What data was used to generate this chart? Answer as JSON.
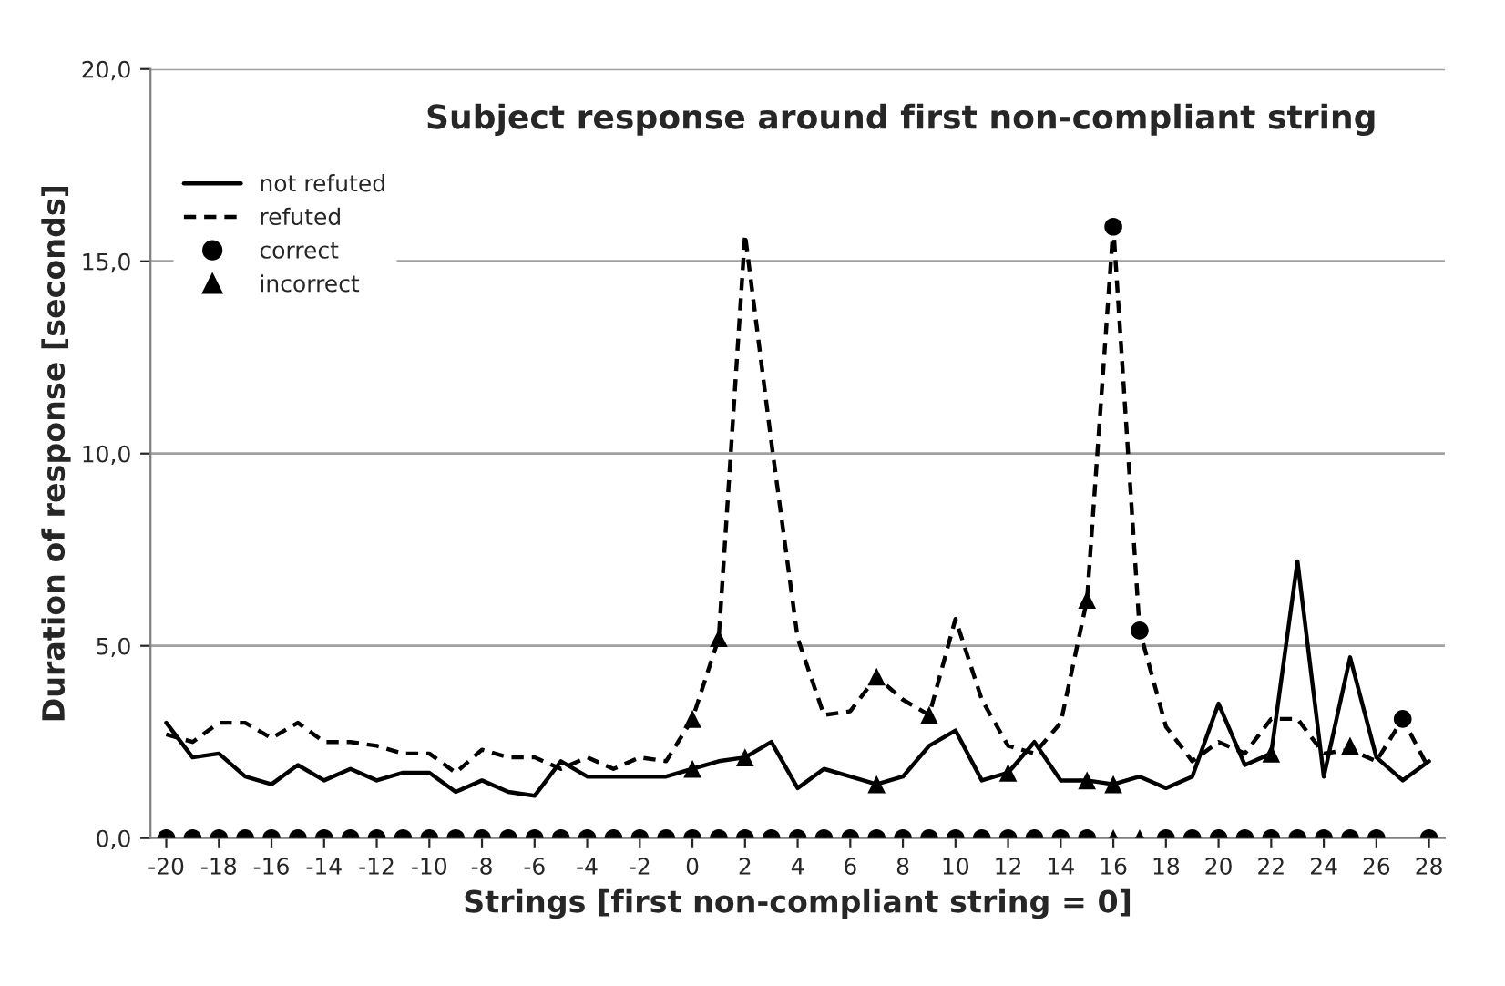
{
  "chart_data": {
    "type": "line",
    "title": "Subject response around first non-compliant string",
    "xlabel": "Strings [first non-compliant string = 0]",
    "ylabel": "Duration of response [seconds]",
    "x": [
      -20,
      -19,
      -18,
      -17,
      -16,
      -15,
      -14,
      -13,
      -12,
      -11,
      -10,
      -9,
      -8,
      -7,
      -6,
      -5,
      -4,
      -3,
      -2,
      -1,
      0,
      1,
      2,
      3,
      4,
      5,
      6,
      7,
      8,
      9,
      10,
      11,
      12,
      13,
      14,
      15,
      16,
      17,
      18,
      19,
      20,
      21,
      22,
      23,
      24,
      25,
      26,
      27,
      28
    ],
    "series": [
      {
        "name": "not refuted",
        "color": "#000000",
        "line_style": "solid",
        "marker": "none",
        "values": [
          3.0,
          2.1,
          2.2,
          1.6,
          1.4,
          1.9,
          1.5,
          1.8,
          1.5,
          1.7,
          1.7,
          1.2,
          1.5,
          1.2,
          1.1,
          2.0,
          1.6,
          1.6,
          1.6,
          1.6,
          1.8,
          2.0,
          2.1,
          2.5,
          1.3,
          1.8,
          1.6,
          1.4,
          1.6,
          2.4,
          2.8,
          1.5,
          1.7,
          2.5,
          1.5,
          1.5,
          1.4,
          1.6,
          1.3,
          1.6,
          3.5,
          1.9,
          2.2,
          7.2,
          1.6,
          4.7,
          2.1,
          1.5,
          2.0
        ]
      },
      {
        "name": "refuted",
        "color": "#000000",
        "line_style": "dashed",
        "marker": "none",
        "values": [
          2.7,
          2.5,
          3.0,
          3.0,
          2.6,
          3.0,
          2.5,
          2.5,
          2.4,
          2.2,
          2.2,
          1.7,
          2.3,
          2.1,
          2.1,
          1.8,
          2.1,
          1.8,
          2.1,
          2.0,
          3.1,
          5.2,
          15.7,
          10.3,
          5.2,
          3.2,
          3.3,
          4.2,
          3.6,
          3.2,
          5.7,
          3.6,
          2.4,
          2.2,
          3.0,
          6.2,
          15.9,
          5.4,
          2.9,
          2.0,
          2.5,
          2.2,
          3.1,
          3.1,
          2.2,
          2.3,
          2.0,
          3.1,
          1.8
        ]
      },
      {
        "name": "correct",
        "type": "scatter",
        "color": "#000000",
        "marker": "circle",
        "values": [
          0,
          0,
          0,
          0,
          0,
          0,
          0,
          0,
          0,
          0,
          0,
          0,
          0,
          0,
          0,
          0,
          0,
          0,
          0,
          0,
          0,
          0,
          0,
          0,
          0,
          0,
          0,
          0,
          0,
          0,
          0,
          0,
          0,
          0,
          0,
          0,
          15.9,
          5.4,
          0,
          0,
          0,
          0,
          0,
          0,
          0,
          0,
          0,
          3.1,
          0
        ]
      },
      {
        "name": "incorrect",
        "type": "scatter",
        "color": "#000000",
        "marker": "triangle",
        "x": [
          0,
          0,
          1,
          2,
          7,
          7,
          9,
          12,
          15,
          15,
          16,
          22,
          25,
          16,
          17
        ],
        "values": [
          3.1,
          1.8,
          5.2,
          2.1,
          4.2,
          1.4,
          3.2,
          1.7,
          6.2,
          1.5,
          1.4,
          2.2,
          2.4,
          0,
          0
        ]
      }
    ],
    "xlim": [
      -20.6,
      28.6
    ],
    "xticks": [
      -20,
      -18,
      -16,
      -14,
      -12,
      -10,
      -8,
      -6,
      -4,
      -2,
      0,
      2,
      4,
      6,
      8,
      10,
      12,
      14,
      16,
      18,
      20,
      22,
      24,
      26,
      28
    ],
    "ylim": [
      0,
      20
    ],
    "yticks": [
      {
        "value": 0,
        "label": "0,0"
      },
      {
        "value": 5,
        "label": "5,0"
      },
      {
        "value": 10,
        "label": "10,0"
      },
      {
        "value": 15,
        "label": "15,0"
      },
      {
        "value": 20,
        "label": "20,0"
      }
    ],
    "grid": "y",
    "legend": "top left"
  }
}
